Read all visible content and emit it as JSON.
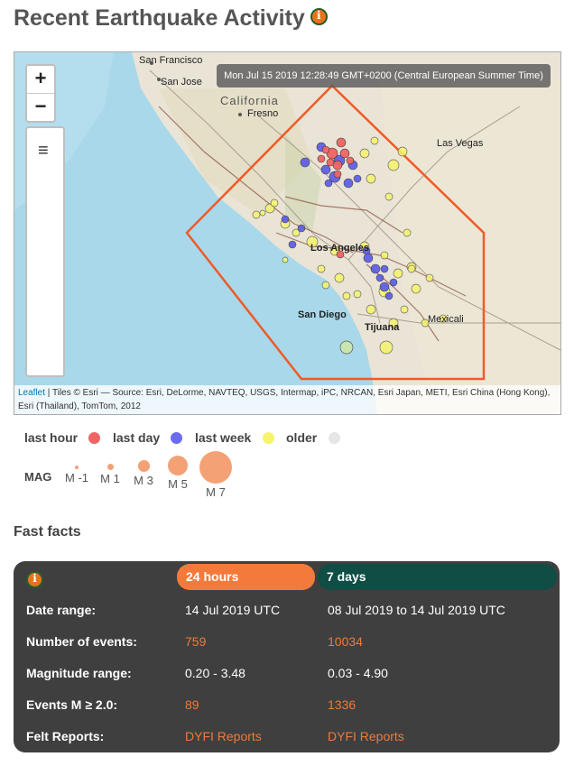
{
  "header": {
    "title": "Recent Earthquake Activity"
  },
  "map": {
    "timestamp": "Mon Jul 15 2019 12:28:49 GMT+0200 (Central European Summer Time)",
    "zoom_in": "+",
    "zoom_out": "−",
    "layers_icon": "≡",
    "place_labels": [
      "San Francisco",
      "San Jose",
      "California",
      "Fresno",
      "Las Vegas",
      "Los Angeles",
      "San Diego",
      "Tijuana",
      "Mexicali"
    ],
    "attribution_link": "Leaflet",
    "attribution_text": " | Tiles © Esri — Source: Esri, DeLorme, NAVTEQ, USGS, Intermap, iPC, NRCAN, Esri Japan, METI, Esri China (Hong Kong), Esri (Thailand), TomTom, 2012"
  },
  "legend": {
    "age": [
      {
        "label": "last hour",
        "color": "#f06464"
      },
      {
        "label": "last day",
        "color": "#6b6bf0"
      },
      {
        "label": "last week",
        "color": "#f5f46a"
      },
      {
        "label": "older",
        "color": "#e6e6e6"
      }
    ],
    "mag_title": "MAG",
    "magnitudes": [
      "M -1",
      "M 1",
      "M 3",
      "M 5",
      "M 7"
    ]
  },
  "facts": {
    "heading": "Fast facts",
    "tab_24h": "24 hours",
    "tab_7d": "7 days",
    "colors": {
      "tab_24h": "#f47a3c",
      "tab_7d": "#0f4d45",
      "value_orange": "#f07a3a",
      "panel": "#3f3f3f"
    },
    "rows": [
      {
        "label": "Date range:",
        "day": "14 Jul 2019 UTC",
        "week": "08 Jul 2019 to 14 Jul 2019 UTC"
      },
      {
        "label": "Number of events:",
        "day": "759",
        "week": "10034"
      },
      {
        "label": "Magnitude range:",
        "day": "0.20 - 3.48",
        "week": "0.03 - 4.90"
      },
      {
        "label": "Events M ≥ 2.0:",
        "day": "89",
        "week": "1336"
      },
      {
        "label": "Felt Reports:",
        "day": "DYFI Reports",
        "week": "DYFI Reports"
      }
    ]
  }
}
